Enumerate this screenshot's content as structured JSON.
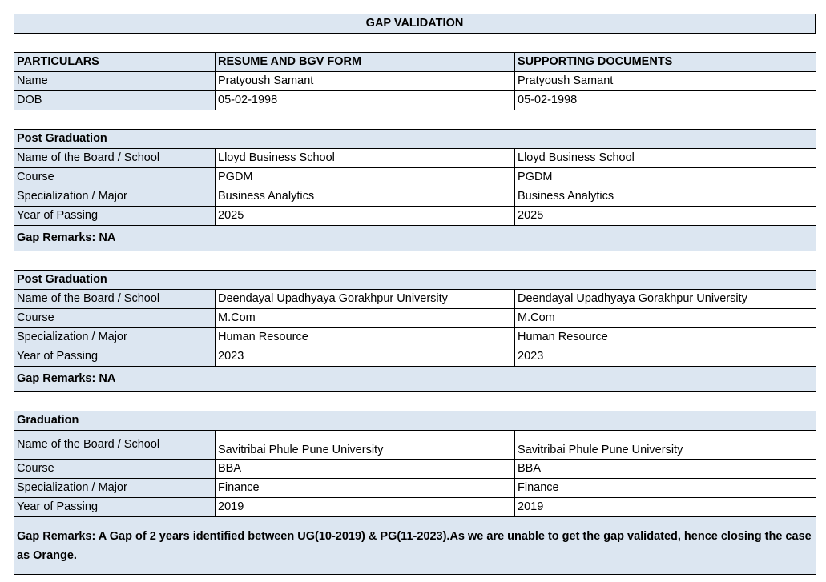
{
  "title": "GAP VALIDATION",
  "header": {
    "particulars": "PARTICULARS",
    "resume": "RESUME AND BGV FORM",
    "supporting": "SUPPORTING DOCUMENTS"
  },
  "personal": [
    {
      "label": "Name",
      "resume": "Pratyoush Samant",
      "supporting": "Pratyoush Samant"
    },
    {
      "label": "DOB",
      "resume": "05-02-1998",
      "supporting": "05-02-1998"
    }
  ],
  "sections": [
    {
      "heading": "Post Graduation",
      "rows": [
        {
          "label": "Name of the Board / School",
          "resume": "Lloyd Business School",
          "supporting": "Lloyd Business School"
        },
        {
          "label": "Course",
          "resume": "PGDM",
          "supporting": "PGDM"
        },
        {
          "label": "Specialization / Major",
          "resume": "Business Analytics",
          "supporting": "Business Analytics"
        },
        {
          "label": "Year of Passing",
          "resume": "2025",
          "supporting": "2025"
        }
      ],
      "remarks": "Gap Remarks: NA"
    },
    {
      "heading": "Post Graduation",
      "rows": [
        {
          "label": "Name of the Board / School",
          "resume": "Deendayal Upadhyaya Gorakhpur University",
          "supporting": "Deendayal Upadhyaya Gorakhpur University"
        },
        {
          "label": "Course",
          "resume": "M.Com",
          "supporting": "M.Com"
        },
        {
          "label": "Specialization / Major",
          "resume": "Human Resource",
          "supporting": "Human Resource"
        },
        {
          "label": "Year of Passing",
          "resume": "2023",
          "supporting": "2023"
        }
      ],
      "remarks": "Gap Remarks: NA"
    },
    {
      "heading": "Graduation",
      "rows": [
        {
          "label": "Name of the Board / School",
          "resume": "Savitribai Phule Pune University",
          "supporting": "Savitribai Phule Pune University"
        },
        {
          "label": "Course",
          "resume": "BBA",
          "supporting": "BBA"
        },
        {
          "label": "Specialization / Major",
          "resume": "Finance",
          "supporting": "Finance"
        },
        {
          "label": "Year of Passing",
          "resume": "2019",
          "supporting": "2019"
        }
      ],
      "remarks": "Gap Remarks: A Gap of 2 years identified between UG(10-2019) & PG(11-2023).As we are unable to get the gap validated, hence closing the case as Orange."
    }
  ]
}
